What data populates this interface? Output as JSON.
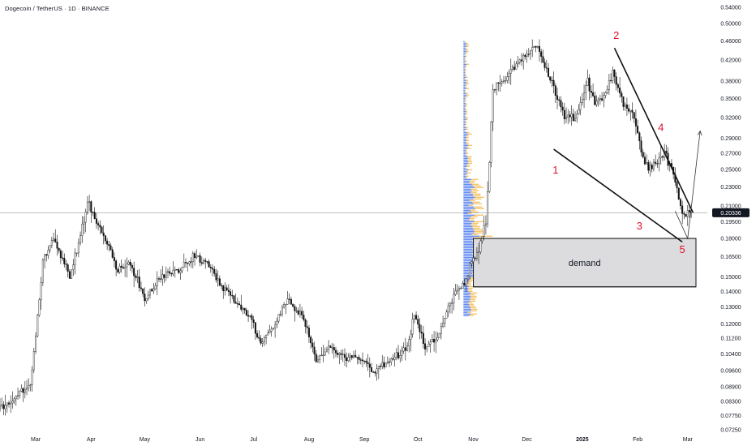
{
  "header": {
    "symbol_title": "Dogecoin / TetherUS · 1D · BINANCE"
  },
  "price_axis": {
    "ticks": [
      "0.54000",
      "0.50000",
      "0.46000",
      "0.42000",
      "0.38000",
      "0.35000",
      "0.32000",
      "0.29000",
      "0.27000",
      "0.25000",
      "0.23000",
      "0.21000",
      "0.19500",
      "0.18000",
      "0.16500",
      "0.15000",
      "0.14000",
      "0.13000",
      "0.12000",
      "0.11200",
      "0.10400",
      "0.09600",
      "0.08900",
      "0.08300",
      "0.07750",
      "0.07250"
    ],
    "current_price": "0.20336",
    "current_price_bg": "#131722"
  },
  "chart_data": {
    "type": "candlestick",
    "title": "Dogecoin / TetherUS · 1D · BINANCE",
    "scale": "log",
    "ylim": [
      0.0725,
      0.54
    ],
    "xlim": [
      "2024-02-10",
      "2025-03-12"
    ],
    "x_ticks": [
      {
        "date": "2024-03-01",
        "label": "Mar"
      },
      {
        "date": "2024-04-01",
        "label": "Apr"
      },
      {
        "date": "2024-05-01",
        "label": "May"
      },
      {
        "date": "2024-06-01",
        "label": "Jun"
      },
      {
        "date": "2024-07-01",
        "label": "Jul"
      },
      {
        "date": "2024-08-01",
        "label": "Aug"
      },
      {
        "date": "2024-09-01",
        "label": "Sep"
      },
      {
        "date": "2024-10-01",
        "label": "Oct"
      },
      {
        "date": "2024-11-01",
        "label": "Nov"
      },
      {
        "date": "2024-12-01",
        "label": "Dec"
      },
      {
        "date": "2025-01-01",
        "label": "2025",
        "bold": true
      },
      {
        "date": "2025-02-01",
        "label": "Feb"
      },
      {
        "date": "2025-03-01",
        "label": "Mar"
      }
    ],
    "price_path": [
      [
        "2024-02-10",
        0.08
      ],
      [
        "2024-02-20",
        0.086
      ],
      [
        "2024-02-27",
        0.09
      ],
      [
        "2024-03-05",
        0.16
      ],
      [
        "2024-03-10",
        0.18
      ],
      [
        "2024-03-14",
        0.17
      ],
      [
        "2024-03-20",
        0.15
      ],
      [
        "2024-03-25",
        0.175
      ],
      [
        "2024-03-30",
        0.215
      ],
      [
        "2024-04-05",
        0.19
      ],
      [
        "2024-04-12",
        0.17
      ],
      [
        "2024-04-16",
        0.155
      ],
      [
        "2024-04-22",
        0.16
      ],
      [
        "2024-04-28",
        0.145
      ],
      [
        "2024-05-01",
        0.135
      ],
      [
        "2024-05-10",
        0.15
      ],
      [
        "2024-05-20",
        0.155
      ],
      [
        "2024-05-28",
        0.165
      ],
      [
        "2024-06-05",
        0.16
      ],
      [
        "2024-06-12",
        0.145
      ],
      [
        "2024-06-20",
        0.135
      ],
      [
        "2024-06-28",
        0.125
      ],
      [
        "2024-07-05",
        0.11
      ],
      [
        "2024-07-12",
        0.118
      ],
      [
        "2024-07-20",
        0.135
      ],
      [
        "2024-07-28",
        0.125
      ],
      [
        "2024-08-05",
        0.1
      ],
      [
        "2024-08-12",
        0.108
      ],
      [
        "2024-08-20",
        0.102
      ],
      [
        "2024-08-28",
        0.103
      ],
      [
        "2024-09-06",
        0.096
      ],
      [
        "2024-09-15",
        0.1
      ],
      [
        "2024-09-25",
        0.108
      ],
      [
        "2024-09-29",
        0.125
      ],
      [
        "2024-10-05",
        0.108
      ],
      [
        "2024-10-12",
        0.112
      ],
      [
        "2024-10-20",
        0.135
      ],
      [
        "2024-10-27",
        0.145
      ],
      [
        "2024-10-31",
        0.16
      ],
      [
        "2024-11-04",
        0.17
      ],
      [
        "2024-11-08",
        0.195
      ],
      [
        "2024-11-10",
        0.26
      ],
      [
        "2024-11-12",
        0.37
      ],
      [
        "2024-11-18",
        0.38
      ],
      [
        "2024-11-24",
        0.41
      ],
      [
        "2024-12-01",
        0.43
      ],
      [
        "2024-12-07",
        0.45
      ],
      [
        "2024-12-12",
        0.4
      ],
      [
        "2024-12-17",
        0.36
      ],
      [
        "2024-12-22",
        0.32
      ],
      [
        "2024-12-28",
        0.32
      ],
      [
        "2025-01-04",
        0.38
      ],
      [
        "2025-01-08",
        0.34
      ],
      [
        "2025-01-13",
        0.35
      ],
      [
        "2025-01-18",
        0.4
      ],
      [
        "2025-01-24",
        0.34
      ],
      [
        "2025-01-30",
        0.32
      ],
      [
        "2025-02-03",
        0.27
      ],
      [
        "2025-02-07",
        0.25
      ],
      [
        "2025-02-12",
        0.26
      ],
      [
        "2025-02-16",
        0.27
      ],
      [
        "2025-02-20",
        0.25
      ],
      [
        "2025-02-25",
        0.21
      ],
      [
        "2025-02-28",
        0.2
      ],
      [
        "2025-03-02",
        0.205
      ]
    ],
    "volume_profile": {
      "anchor_date": "2024-10-31",
      "price_top": 0.46,
      "price_bottom": 0.125,
      "colors": {
        "up": "#4a78f0",
        "value_area": "#f2b84b"
      }
    },
    "demand_zone": {
      "label": "demand",
      "start": "2024-11-01",
      "end": "2025-03-12",
      "price_high": 0.18,
      "price_low": 0.143,
      "fill": "#dcdcdf"
    },
    "trend_lines": [
      {
        "from": [
          "2025-01-19",
          0.445
        ],
        "to": [
          "2025-03-04",
          0.2035
        ]
      },
      {
        "from": [
          "2024-12-16",
          0.275
        ],
        "to": [
          "2025-02-26",
          0.177
        ]
      },
      {
        "from": [
          "2024-11-03",
          0.18
        ],
        "to": [
          "2025-03-12",
          0.18
        ]
      },
      {
        "from": [
          "2024-11-01",
          0.143
        ],
        "to": [
          "2025-03-12",
          0.143
        ]
      }
    ],
    "projection": {
      "points": [
        [
          "2025-02-22",
          0.205
        ],
        [
          "2025-03-01",
          0.18
        ],
        [
          "2025-03-08",
          0.3
        ]
      ],
      "color": "#333333"
    },
    "wave_labels": [
      {
        "text": "1",
        "date": "2024-12-17",
        "price": 0.245
      },
      {
        "text": "2",
        "date": "2025-01-20",
        "price": 0.465
      },
      {
        "text": "3",
        "date": "2025-02-02",
        "price": 0.188
      },
      {
        "text": "4",
        "date": "2025-02-14",
        "price": 0.3
      },
      {
        "text": "5",
        "date": "2025-02-26",
        "price": 0.168
      }
    ],
    "colors": {
      "candle": "#111111",
      "grid_line": "#b8b8b8",
      "current_line": "#9a9a9a",
      "wave": "#e0112b"
    }
  }
}
